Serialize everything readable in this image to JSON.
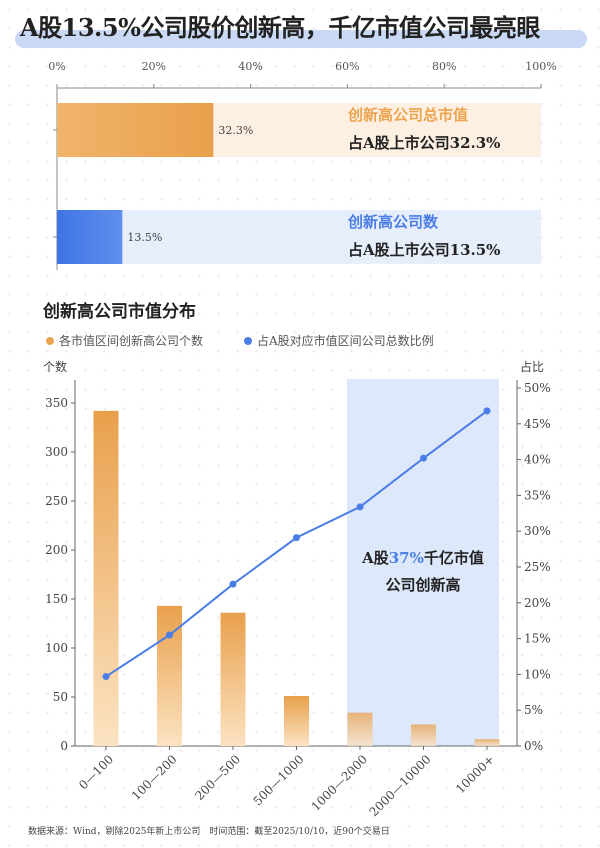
{
  "title": "A股13.5%公司股价创新高，千亿市值公司最亮眼",
  "colors": {
    "orange": "#eda44f",
    "blue": "#4a7ee6",
    "band": "#d9e5fb"
  },
  "chart_data": [
    {
      "type": "bar",
      "orientation": "horizontal",
      "xlim": [
        0,
        100
      ],
      "xticks": [
        "0%",
        "20%",
        "40%",
        "60%",
        "80%",
        "100%"
      ],
      "series": [
        {
          "value": 32.3,
          "value_label": "32.3%",
          "label": "创新高公司总市值",
          "sublabel": "占A股上市公司32.3%"
        },
        {
          "value": 13.5,
          "value_label": "13.5%",
          "label": "创新高公司数",
          "sublabel": "占A股上市公司13.5%"
        }
      ]
    },
    {
      "type": "bar+line",
      "title": "创新高公司市值分布",
      "categories": [
        "0—100",
        "100—200",
        "200—500",
        "500—1000",
        "1000—2000",
        "2000—10000",
        "10000+"
      ],
      "series": [
        {
          "name": "各市值区间创新高公司个数",
          "type": "bar",
          "axis": "left",
          "values": [
            342,
            143,
            136,
            51,
            34,
            22,
            7
          ]
        },
        {
          "name": "占A股对应市值区间公司总数比例",
          "type": "line",
          "axis": "right",
          "values": [
            9.7,
            15.5,
            22.6,
            29.1,
            33.4,
            40.2,
            46.8
          ]
        }
      ],
      "ylabel_left": "个数",
      "ylim_left": [
        0,
        350
      ],
      "yticks_left": [
        "0",
        "50",
        "100",
        "150",
        "200",
        "250",
        "300",
        "350"
      ],
      "ylabel_right": "占比",
      "ylim_right": [
        0,
        50
      ],
      "yticks_right": [
        "0%",
        "5%",
        "10%",
        "15%",
        "20%",
        "25%",
        "30%",
        "35%",
        "40%",
        "45%",
        "50%"
      ],
      "annotation": {
        "pre": "A股",
        "hl": "37%",
        "post": "千亿市值",
        "line2": "公司创新高"
      },
      "legend": "top-left"
    }
  ],
  "footer": "数据来源：Wind，剔除2025年新上市公司　时间范围：截至2025/10/10，近90个交易日"
}
